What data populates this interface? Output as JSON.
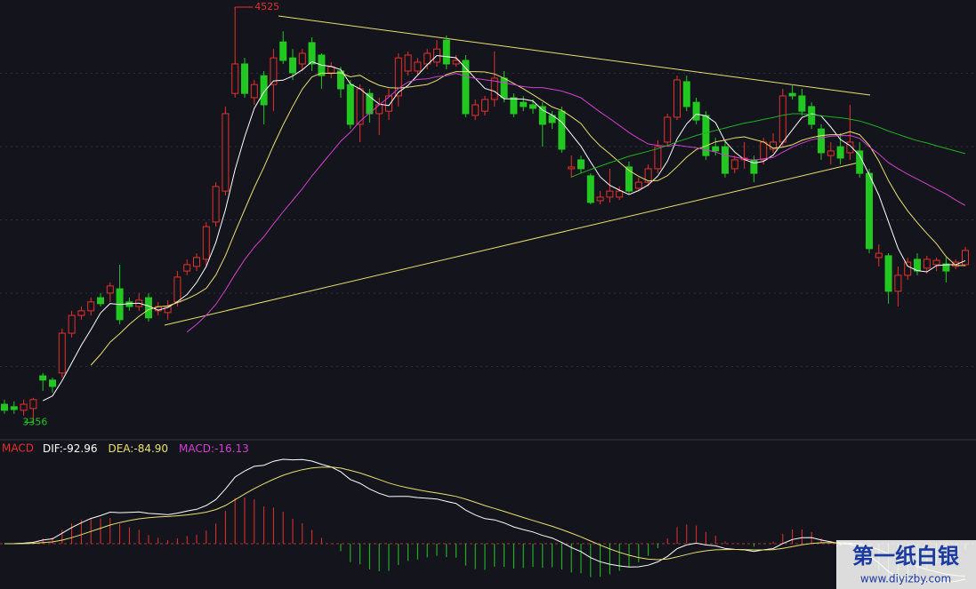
{
  "chart_data": {
    "type": "candlestick",
    "ylim": [
      3307,
      4545
    ],
    "grid": true,
    "up_color": "#e8302c",
    "down_color": "#22c722",
    "open": [
      3407,
      3400,
      3390,
      3395,
      3487,
      3475,
      3495,
      3607,
      3657,
      3670,
      3707,
      3720,
      3732,
      3695,
      3682,
      3707,
      3670,
      3665,
      3695,
      3782,
      3795,
      3815,
      3920,
      4007,
      4282,
      4365,
      4270,
      4332,
      4307,
      4427,
      4382,
      4365,
      4425,
      4390,
      4340,
      4345,
      4307,
      4195,
      4282,
      4225,
      4232,
      4275,
      4345,
      4345,
      4365,
      4370,
      4432,
      4365,
      4375,
      4220,
      4232,
      4265,
      4325,
      4270,
      4257,
      4250,
      4245,
      4220,
      4232,
      4070,
      4095,
      4050,
      3980,
      3990,
      3990,
      4075,
      4015,
      4032,
      4070,
      4145,
      4215,
      4315,
      4257,
      4220,
      4132,
      4132,
      4070,
      4095,
      4095,
      4095,
      4125,
      4145,
      4282,
      4275,
      4245,
      4182,
      4107,
      4132,
      4115,
      4120,
      4057,
      3820,
      3825,
      3725,
      3770,
      3815,
      3790,
      3800,
      3802,
      3795,
      3800
    ],
    "close": [
      3390,
      3392,
      3407,
      3420,
      3475,
      3457,
      3607,
      3657,
      3670,
      3695,
      3690,
      3740,
      3645,
      3682,
      3700,
      3650,
      3682,
      3682,
      3765,
      3800,
      3820,
      3907,
      4020,
      4225,
      4365,
      4282,
      4307,
      4250,
      4382,
      4375,
      4340,
      4395,
      4365,
      4332,
      4357,
      4295,
      4195,
      4295,
      4225,
      4250,
      4275,
      4382,
      4390,
      4370,
      4395,
      4407,
      4365,
      4375,
      4225,
      4250,
      4265,
      4325,
      4270,
      4225,
      4245,
      4240,
      4195,
      4200,
      4125,
      4075,
      4070,
      3975,
      3990,
      4007,
      4007,
      4007,
      4032,
      4070,
      4132,
      4215,
      4320,
      4245,
      4207,
      4107,
      4120,
      4057,
      4095,
      4100,
      4057,
      4145,
      4145,
      4275,
      4275,
      4232,
      4195,
      4115,
      4120,
      4100,
      4145,
      4057,
      3845,
      3832,
      3725,
      3770,
      3807,
      3782,
      3815,
      3812,
      3782,
      3807,
      3840
    ],
    "high": [
      3420,
      3415,
      3420,
      3425,
      3495,
      3482,
      3620,
      3670,
      3682,
      3707,
      3720,
      3750,
      3800,
      3707,
      3720,
      3720,
      3695,
      3700,
      3782,
      3815,
      3832,
      3920,
      4032,
      4245,
      4525,
      4382,
      4320,
      4345,
      4407,
      4457,
      4407,
      4407,
      4440,
      4395,
      4370,
      4357,
      4320,
      4307,
      4295,
      4270,
      4295,
      4395,
      4400,
      4382,
      4407,
      4432,
      4445,
      4390,
      4390,
      4265,
      4275,
      4400,
      4345,
      4282,
      4275,
      4265,
      4257,
      4232,
      4245,
      4107,
      4107,
      4057,
      4007,
      4070,
      4020,
      4090,
      4045,
      4082,
      4150,
      4225,
      4332,
      4332,
      4270,
      4232,
      4157,
      4145,
      4107,
      4145,
      4107,
      4157,
      4170,
      4295,
      4307,
      4295,
      4257,
      4195,
      4145,
      4170,
      4250,
      4145,
      4070,
      3857,
      3832,
      3795,
      3820,
      3832,
      3825,
      3820,
      3820,
      3815,
      3850
    ],
    "low": [
      3380,
      3380,
      3375,
      3356,
      3445,
      3440,
      3482,
      3595,
      3645,
      3657,
      3682,
      3695,
      3632,
      3670,
      3670,
      3640,
      3657,
      3645,
      3682,
      3770,
      3782,
      3795,
      3907,
      3995,
      4270,
      4270,
      4250,
      4195,
      4232,
      4365,
      4320,
      4345,
      4345,
      4295,
      4325,
      4270,
      4182,
      4145,
      4200,
      4165,
      4207,
      4245,
      4332,
      4332,
      4350,
      4357,
      4350,
      4357,
      4215,
      4207,
      4220,
      4245,
      4257,
      4215,
      4232,
      4225,
      4132,
      4182,
      4115,
      4045,
      4057,
      3970,
      3970,
      3975,
      3982,
      4000,
      4007,
      4020,
      4057,
      4132,
      4207,
      4232,
      4195,
      4095,
      4107,
      4045,
      4057,
      4070,
      4032,
      4082,
      4115,
      4132,
      4265,
      4220,
      4182,
      4095,
      4082,
      4082,
      4095,
      4045,
      3832,
      3795,
      3690,
      3682,
      3757,
      3770,
      3775,
      3782,
      3750,
      3787,
      3795
    ],
    "ma": [
      5,
      10,
      20,
      60
    ],
    "ma_colors": [
      "#ffffff",
      "#e8e070",
      "#d040d0",
      "#20b020"
    ],
    "macd": {
      "title": "MACD",
      "params": [
        12,
        26,
        9
      ],
      "items": [
        {
          "name": "DIF:",
          "value": -92.96,
          "label": "-92.96",
          "color": "#ffffff"
        },
        {
          "name": "DEA:",
          "value": -84.9,
          "label": "-84.90",
          "color": "#e8e070"
        },
        {
          "name": "MACD:",
          "value": -16.13,
          "label": "-16.13",
          "color": "#d040d0"
        }
      ]
    },
    "watermark": {
      "text": "第一纸白银",
      "url": "www.diyizby.com"
    }
  }
}
